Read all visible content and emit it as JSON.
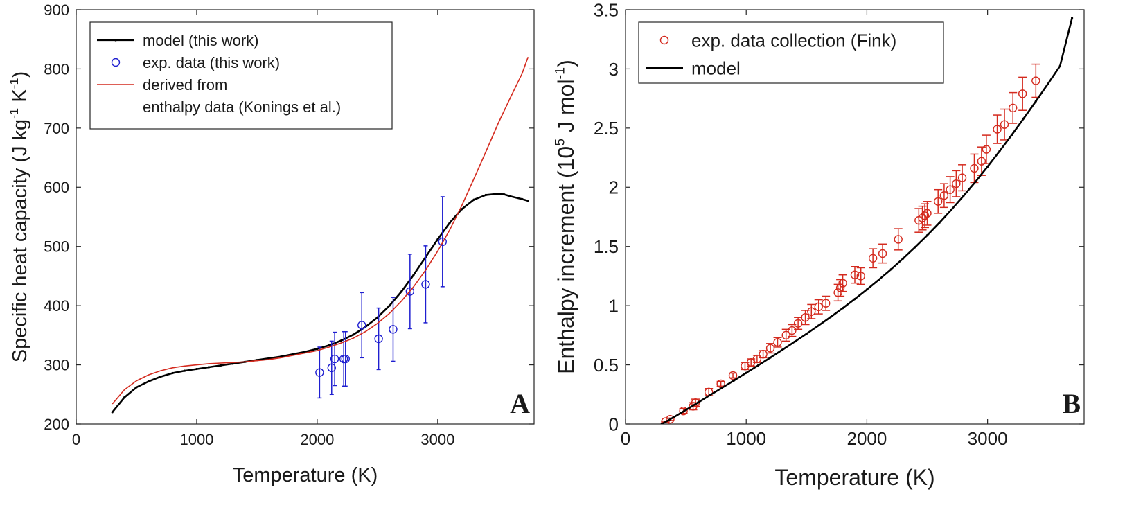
{
  "chart_data": [
    {
      "type": "line",
      "panel_label": "A",
      "xlabel": "Temperature (K)",
      "ylabel": {
        "main": "Specific heat capacity (J kg",
        "sup1": "-1",
        "mid": " K",
        "sup2": "-1",
        "end": ")"
      },
      "xlim": [
        0,
        3800
      ],
      "ylim": [
        200,
        900
      ],
      "xticks": [
        0,
        1000,
        2000,
        3000
      ],
      "yticks": [
        200,
        300,
        400,
        500,
        600,
        700,
        800,
        900
      ],
      "legend_position": "top-left",
      "series": [
        {
          "name": "model  (this work)",
          "kind": "line-dots",
          "color": "#000000",
          "x": [
            300,
            400,
            500,
            600,
            700,
            800,
            900,
            1000,
            1100,
            1200,
            1300,
            1400,
            1500,
            1600,
            1700,
            1800,
            1900,
            2000,
            2100,
            2200,
            2300,
            2400,
            2500,
            2600,
            2700,
            2800,
            2900,
            3000,
            3100,
            3200,
            3300,
            3400,
            3500,
            3550,
            3600,
            3700,
            3750
          ],
          "y": [
            220,
            245,
            262,
            272,
            280,
            286,
            290,
            293,
            296,
            299,
            302,
            305,
            308,
            311,
            314,
            318,
            322,
            327,
            333,
            341,
            351,
            364,
            380,
            400,
            424,
            452,
            482,
            512,
            540,
            563,
            579,
            587,
            589,
            588,
            585,
            580,
            577
          ]
        },
        {
          "name": "exp. data (this work)",
          "kind": "points-errorbars",
          "color": "#1f1fd0",
          "x": [
            2020,
            2120,
            2145,
            2220,
            2235,
            2370,
            2510,
            2630,
            2770,
            2900,
            3040
          ],
          "y": [
            287,
            295,
            310,
            310,
            310,
            367,
            344,
            360,
            424,
            436,
            508
          ],
          "err": [
            43,
            45,
            45,
            46,
            46,
            55,
            52,
            54,
            63,
            65,
            76
          ]
        },
        {
          "name_line1": "derived from",
          "name_line2": "enthalpy data (Konings et al.)",
          "kind": "line",
          "color": "#d42a1e",
          "x": [
            300,
            400,
            500,
            600,
            700,
            800,
            900,
            1000,
            1100,
            1200,
            1300,
            1400,
            1500,
            1600,
            1700,
            1800,
            1900,
            2000,
            2100,
            2200,
            2300,
            2400,
            2500,
            2600,
            2700,
            2800,
            2900,
            3000,
            3100,
            3200,
            3300,
            3400,
            3500,
            3600,
            3700,
            3750
          ],
          "y": [
            234,
            258,
            273,
            283,
            290,
            295,
            298,
            300,
            302,
            303,
            304,
            305,
            307,
            309,
            312,
            316,
            320,
            324,
            330,
            337,
            345,
            356,
            370,
            387,
            408,
            432,
            460,
            492,
            528,
            569,
            614,
            660,
            707,
            750,
            792,
            820
          ]
        }
      ]
    },
    {
      "type": "line",
      "panel_label": "B",
      "xlabel": "Temperature (K)",
      "ylabel": {
        "main": "Enthalpy increment (10",
        "sup1": "5",
        "mid": " J mol",
        "sup2": "-1",
        "end": ")"
      },
      "xlim": [
        0,
        3800
      ],
      "ylim": [
        0,
        3.5
      ],
      "xticks": [
        0,
        1000,
        2000,
        3000
      ],
      "yticks": [
        0,
        0.5,
        1,
        1.5,
        2,
        2.5,
        3,
        3.5
      ],
      "ytick_labels": [
        "0",
        "0.5",
        "1",
        "1.5",
        "2",
        "2.5",
        "3",
        "3.5"
      ],
      "legend_position": "top-left",
      "series": [
        {
          "name": "exp. data collection (Fink)",
          "kind": "points-errorbars",
          "color": "#d42a1e",
          "x": [
            330,
            370,
            480,
            560,
            580,
            690,
            790,
            890,
            990,
            1040,
            1090,
            1140,
            1200,
            1260,
            1330,
            1380,
            1430,
            1490,
            1540,
            1600,
            1660,
            1760,
            1780,
            1800,
            1900,
            1950,
            2050,
            2130,
            2260,
            2430,
            2460,
            2480,
            2500,
            2590,
            2640,
            2690,
            2740,
            2790,
            2890,
            2950,
            2990,
            3080,
            3140,
            3210,
            3290,
            3400
          ],
          "y": [
            0.02,
            0.04,
            0.11,
            0.15,
            0.18,
            0.27,
            0.34,
            0.41,
            0.49,
            0.52,
            0.55,
            0.59,
            0.64,
            0.69,
            0.75,
            0.79,
            0.85,
            0.9,
            0.95,
            0.99,
            1.02,
            1.11,
            1.15,
            1.19,
            1.26,
            1.25,
            1.4,
            1.44,
            1.56,
            1.72,
            1.74,
            1.76,
            1.78,
            1.88,
            1.93,
            1.98,
            2.03,
            2.08,
            2.16,
            2.22,
            2.32,
            2.49,
            2.53,
            2.67,
            2.79,
            2.9
          ],
          "err": [
            0.005,
            0.01,
            0.02,
            0.03,
            0.03,
            0.03,
            0.02,
            0.02,
            0.03,
            0.03,
            0.03,
            0.03,
            0.04,
            0.04,
            0.05,
            0.05,
            0.05,
            0.06,
            0.06,
            0.06,
            0.06,
            0.07,
            0.07,
            0.07,
            0.07,
            0.07,
            0.08,
            0.08,
            0.09,
            0.1,
            0.1,
            0.1,
            0.1,
            0.1,
            0.1,
            0.11,
            0.11,
            0.11,
            0.12,
            0.12,
            0.12,
            0.12,
            0.13,
            0.13,
            0.14,
            0.14
          ]
        },
        {
          "name": "model",
          "kind": "line-dots",
          "color": "#000000",
          "x": [
            300,
            400,
            500,
            600,
            700,
            800,
            900,
            1000,
            1100,
            1200,
            1300,
            1400,
            1500,
            1600,
            1700,
            1800,
            1900,
            2000,
            2100,
            2200,
            2300,
            2400,
            2500,
            2600,
            2700,
            2800,
            2900,
            3000,
            3100,
            3200,
            3300,
            3400,
            3500,
            3600,
            3700
          ],
          "y": [
            0.0,
            0.058,
            0.119,
            0.181,
            0.244,
            0.306,
            0.369,
            0.432,
            0.496,
            0.561,
            0.627,
            0.694,
            0.762,
            0.832,
            0.904,
            0.979,
            1.056,
            1.136,
            1.22,
            1.307,
            1.398,
            1.494,
            1.594,
            1.699,
            1.81,
            1.926,
            2.047,
            2.174,
            2.306,
            2.442,
            2.582,
            2.726,
            2.873,
            3.024,
            3.43
          ]
        }
      ]
    }
  ]
}
